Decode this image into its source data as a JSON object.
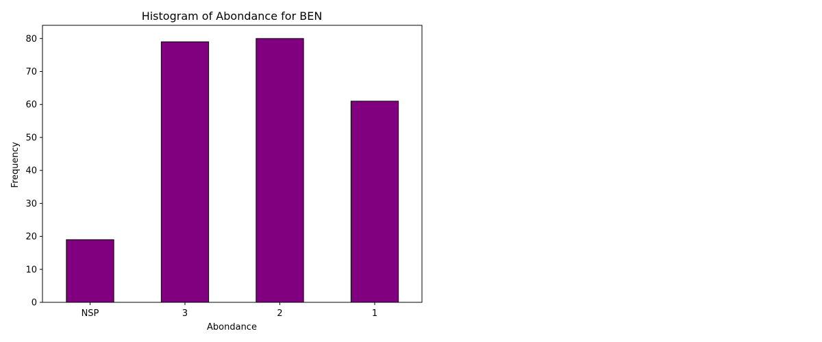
{
  "chart_data": {
    "type": "bar",
    "title": "Histogram of Abondance for BEN",
    "xlabel": "Abondance",
    "ylabel": "Frequency",
    "categories": [
      "NSP",
      "3",
      "2",
      "1"
    ],
    "values": [
      19,
      79,
      80,
      61
    ],
    "ylim": [
      0,
      84
    ],
    "yticks": [
      0,
      10,
      20,
      30,
      40,
      50,
      60,
      70,
      80
    ],
    "grid": false,
    "bar_color": "#800080",
    "edge_color": "#000000"
  }
}
